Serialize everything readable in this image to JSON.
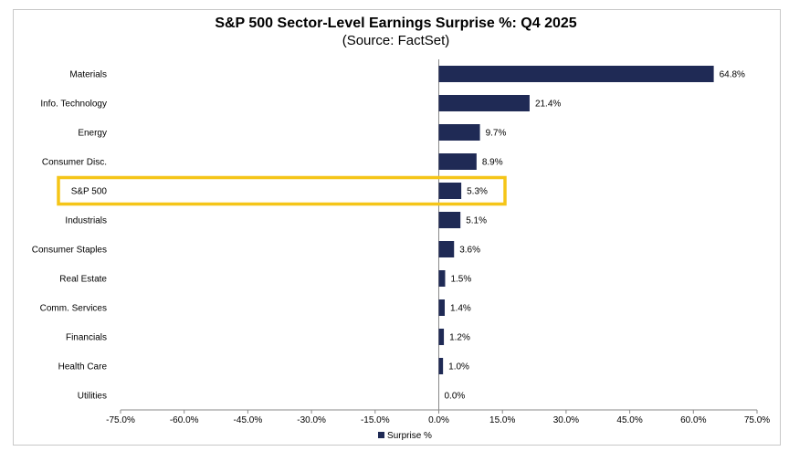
{
  "chart_data": {
    "type": "bar",
    "orientation": "horizontal",
    "title": "S&P 500 Sector-Level Earnings Surprise %: Q4 2025",
    "subtitle": "(Source: FactSet)",
    "categories": [
      "Materials",
      "Info. Technology",
      "Energy",
      "Consumer Disc.",
      "S&P 500",
      "Industrials",
      "Consumer Staples",
      "Real Estate",
      "Comm. Services",
      "Financials",
      "Health Care",
      "Utilities"
    ],
    "series": [
      {
        "name": "Surprise %",
        "values": [
          64.8,
          21.4,
          9.7,
          8.9,
          5.3,
          5.1,
          3.6,
          1.5,
          1.4,
          1.2,
          1.0,
          0.0
        ],
        "data_labels": [
          "64.8%",
          "21.4%",
          "9.7%",
          "8.9%",
          "5.3%",
          "5.1%",
          "3.6%",
          "1.5%",
          "1.4%",
          "1.2%",
          "1.0%",
          "0.0%"
        ]
      }
    ],
    "xlim": [
      -75,
      75
    ],
    "xticks": [
      -75,
      -60,
      -45,
      -30,
      -15,
      0,
      15,
      30,
      45,
      60,
      75
    ],
    "xtick_labels": [
      "-75.0%",
      "-60.0%",
      "-45.0%",
      "-30.0%",
      "-15.0%",
      "0.0%",
      "15.0%",
      "30.0%",
      "45.0%",
      "60.0%",
      "75.0%"
    ],
    "highlighted_category": "S&P 500",
    "legend_position": "bottom",
    "grid": false
  },
  "colors": {
    "bar": "#1f2a55",
    "highlight": "#f5c518",
    "axis": "#888888"
  },
  "legend": {
    "label": "Surprise %"
  }
}
